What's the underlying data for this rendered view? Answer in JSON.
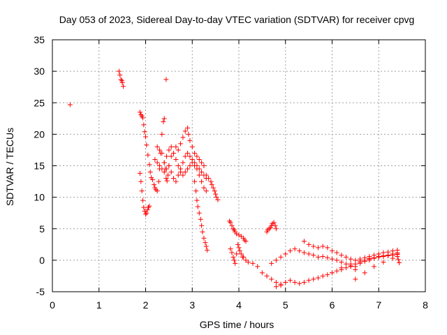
{
  "chart_data": {
    "type": "scatter",
    "title": "Day 053 of 2023, Sidereal Day-to-day VTEC variation (SDTVAR) for receiver cpvg",
    "xlabel": "GPS time / hours",
    "ylabel": "SDTVAR / TECUs",
    "xlim": [
      0,
      8
    ],
    "ylim": [
      -5,
      35
    ],
    "xticks": [
      0,
      1,
      2,
      3,
      4,
      5,
      6,
      7,
      8
    ],
    "yticks": [
      -5,
      0,
      5,
      10,
      15,
      20,
      25,
      30,
      35
    ],
    "grid": true,
    "marker": "plus",
    "color": "#ff0000",
    "series": [
      {
        "name": "SDTVAR",
        "x": [
          0.38,
          1.43,
          1.45,
          1.47,
          1.49,
          1.5,
          1.52,
          2.44,
          1.88,
          1.9,
          1.92,
          1.94,
          1.96,
          1.98,
          2.0,
          2.02,
          2.05,
          2.08,
          2.1,
          2.12,
          2.15,
          2.18,
          2.2,
          2.22,
          2.25,
          2.28,
          2.3,
          2.32,
          2.35,
          2.38,
          2.4,
          1.88,
          1.9,
          1.92,
          1.94,
          1.96,
          1.98,
          2.0,
          2.02,
          2.04,
          2.06,
          2.08,
          2.25,
          2.3,
          2.35,
          2.4,
          2.42,
          2.44,
          2.46,
          2.48,
          2.5,
          2.55,
          2.6,
          2.65,
          2.7,
          2.75,
          2.8,
          2.85,
          2.9,
          2.92,
          2.95,
          3.0,
          3.05,
          3.1,
          3.15,
          3.2,
          3.25,
          2.2,
          2.25,
          2.3,
          2.35,
          2.4,
          2.45,
          2.5,
          2.55,
          2.6,
          2.65,
          2.7,
          2.75,
          2.8,
          2.85,
          2.9,
          2.95,
          3.0,
          3.05,
          3.1,
          3.15,
          3.2,
          3.25,
          3.3,
          2.4,
          2.45,
          2.5,
          2.55,
          2.6,
          2.65,
          2.7,
          2.75,
          2.8,
          2.85,
          2.9,
          2.95,
          3.0,
          3.05,
          3.1,
          3.15,
          3.2,
          3.25,
          3.3,
          3.05,
          3.08,
          3.1,
          3.12,
          3.15,
          3.18,
          3.2,
          3.22,
          3.25,
          3.28,
          3.3,
          3.32,
          3.3,
          3.35,
          3.4,
          3.42,
          3.45,
          3.48,
          3.5,
          3.52,
          3.55,
          3.8,
          3.82,
          3.85,
          3.88,
          3.9,
          3.92,
          3.95,
          4.0,
          4.05,
          4.1,
          4.12,
          4.15,
          3.82,
          3.85,
          3.88,
          3.9,
          3.92,
          3.95,
          3.98,
          4.0,
          4.02,
          4.05,
          4.08,
          4.1,
          4.15,
          4.2,
          4.3,
          4.4,
          4.5,
          4.6,
          4.7,
          4.8,
          4.9,
          4.6,
          4.62,
          4.65,
          4.68,
          4.7,
          4.72,
          4.75,
          4.78,
          4.8,
          4.7,
          4.8,
          4.9,
          5.0,
          5.1,
          5.2,
          5.3,
          5.4,
          5.5,
          5.6,
          5.7,
          5.8,
          5.9,
          6.0,
          6.1,
          6.2,
          6.3,
          6.4,
          6.5,
          4.8,
          4.9,
          5.0,
          5.1,
          5.2,
          5.3,
          5.4,
          5.5,
          5.6,
          5.7,
          5.8,
          5.9,
          6.0,
          6.1,
          6.2,
          6.3,
          6.4,
          6.5,
          6.6,
          6.7,
          6.8,
          6.9,
          7.0,
          7.1,
          7.2,
          7.3,
          7.4,
          5.4,
          5.5,
          5.6,
          5.7,
          5.8,
          5.9,
          6.0,
          6.1,
          6.2,
          6.3,
          6.4,
          6.5,
          6.6,
          6.7,
          6.8,
          6.9,
          7.0,
          7.1,
          7.2,
          7.3,
          7.4,
          6.5,
          6.6,
          6.7,
          6.8,
          6.9,
          7.0,
          7.1,
          7.2,
          7.3,
          7.4,
          6.0,
          6.2,
          6.4,
          6.6,
          6.8,
          7.0,
          7.2,
          7.4,
          6.5,
          6.7,
          6.9,
          7.1,
          7.3,
          7.4,
          7.42,
          7.44
        ],
        "y": [
          24.7,
          30.0,
          29.4,
          28.7,
          28.5,
          28.2,
          27.6,
          28.7,
          23.5,
          23.1,
          22.9,
          22.6,
          21.5,
          20.4,
          19.6,
          18.3,
          16.7,
          15.2,
          14.0,
          13.1,
          12.8,
          12.0,
          11.5,
          11.2,
          11.0,
          12.5,
          14.5,
          17.0,
          20.0,
          22.0,
          22.5,
          13.8,
          12.5,
          11.0,
          9.5,
          8.4,
          7.8,
          7.3,
          7.5,
          8.0,
          8.4,
          8.6,
          18.0,
          17.5,
          17.0,
          15.5,
          14.5,
          13.0,
          12.6,
          13.5,
          15.0,
          16.5,
          17.0,
          18.0,
          17.5,
          18.5,
          19.5,
          20.5,
          21.0,
          20.0,
          19.0,
          18.0,
          17.0,
          16.5,
          16.0,
          15.5,
          15.0,
          16.0,
          15.5,
          15.0,
          14.5,
          15.5,
          16.5,
          17.5,
          18.0,
          17.0,
          16.0,
          15.0,
          14.0,
          13.5,
          14.0,
          14.5,
          15.0,
          15.5,
          15.0,
          14.5,
          13.5,
          12.5,
          11.5,
          11.0,
          14.0,
          14.5,
          15.0,
          14.0,
          13.0,
          12.5,
          13.5,
          14.5,
          15.5,
          16.5,
          17.0,
          16.5,
          16.0,
          15.5,
          15.0,
          14.5,
          14.0,
          13.5,
          13.0,
          12.5,
          11.0,
          9.5,
          8.5,
          7.5,
          6.5,
          5.5,
          4.5,
          3.5,
          2.8,
          2.2,
          1.6,
          13.5,
          13.0,
          12.5,
          12.0,
          11.5,
          11.0,
          10.5,
          10.0,
          9.6,
          6.2,
          6.0,
          5.5,
          5.0,
          4.8,
          4.5,
          4.2,
          4.0,
          3.8,
          3.5,
          3.2,
          3.0,
          1.8,
          1.2,
          0.5,
          0.0,
          -0.5,
          1.0,
          2.5,
          2.0,
          1.5,
          1.0,
          0.5,
          0.5,
          0.0,
          -0.3,
          -0.5,
          -1.0,
          -2.0,
          -2.5,
          -3.0,
          -3.5,
          -4.0,
          4.5,
          4.8,
          5.0,
          5.2,
          5.5,
          5.8,
          6.0,
          5.5,
          5.0,
          -0.5,
          0.0,
          0.5,
          1.0,
          1.5,
          1.8,
          1.5,
          1.2,
          1.0,
          0.8,
          0.5,
          0.6,
          0.4,
          0.2,
          0.0,
          -0.3,
          -0.6,
          -1.0,
          -1.5,
          -4.2,
          -3.8,
          -3.5,
          -3.2,
          -3.5,
          -3.7,
          -3.5,
          -3.2,
          -3.0,
          -2.8,
          -2.5,
          -2.3,
          -2.0,
          -1.7,
          -1.5,
          -1.2,
          -0.9,
          -0.6,
          -0.3,
          0.0,
          0.2,
          0.4,
          0.6,
          0.7,
          0.8,
          1.0,
          1.2,
          3.0,
          2.5,
          2.2,
          2.0,
          2.2,
          2.0,
          1.5,
          1.2,
          0.8,
          0.5,
          0.2,
          0.0,
          0.2,
          0.4,
          0.6,
          0.8,
          1.0,
          1.2,
          1.3,
          1.5,
          1.6,
          -1.0,
          -0.5,
          -0.2,
          0.0,
          0.3,
          0.5,
          0.6,
          0.7,
          0.8,
          0.9,
          -2.0,
          -1.2,
          -0.6,
          -0.1,
          0.3,
          0.6,
          0.8,
          1.0,
          -3.0,
          -2.0,
          -1.0,
          -0.3,
          0.3,
          0.6,
          0.1,
          -0.4
        ]
      }
    ]
  }
}
